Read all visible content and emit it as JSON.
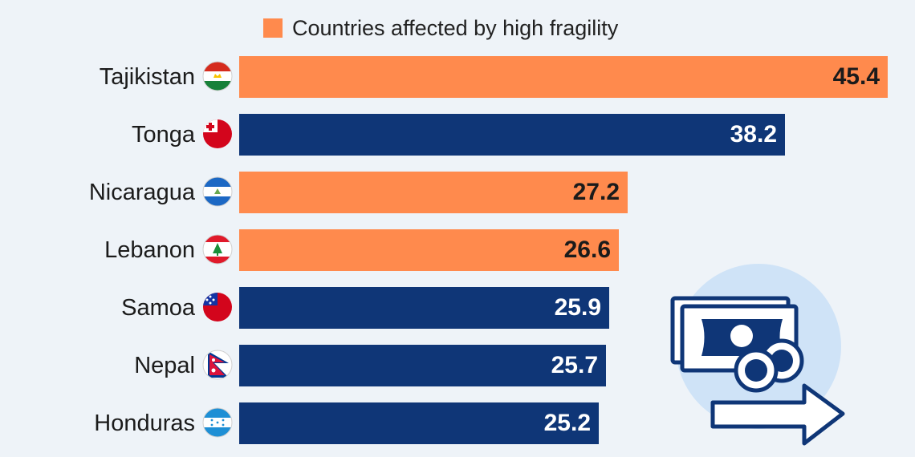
{
  "chart_data": {
    "type": "bar",
    "orientation": "horizontal",
    "title": "",
    "xlabel": "",
    "ylabel": "",
    "xlim": [
      0,
      45.4
    ],
    "grid": false,
    "legend": {
      "position": "top",
      "entries": [
        {
          "label": "Countries affected by high fragility",
          "color": "#ff8a4d"
        }
      ]
    },
    "categories": [
      "Tajikistan",
      "Tonga",
      "Nicaragua",
      "Lebanon",
      "Samoa",
      "Nepal",
      "Honduras"
    ],
    "values": [
      45.4,
      38.2,
      27.2,
      26.6,
      25.9,
      25.7,
      25.2
    ],
    "value_labels": [
      "45.4",
      "38.2",
      "27.2",
      "26.6",
      "25.9",
      "25.7",
      "25.2"
    ],
    "high_fragility": [
      true,
      false,
      true,
      true,
      false,
      false,
      false
    ],
    "colors": {
      "high": "#ff8a4d",
      "normal": "#0f3677",
      "label_on_high": "#1b1b1b",
      "label_on_normal": "#ffffff"
    }
  },
  "icons": {
    "flags": [
      "tajikistan-flag-icon",
      "tonga-flag-icon",
      "nicaragua-flag-icon",
      "lebanon-flag-icon",
      "samoa-flag-icon",
      "nepal-flag-icon",
      "honduras-flag-icon"
    ],
    "illustration": "money-transfer-icon"
  }
}
